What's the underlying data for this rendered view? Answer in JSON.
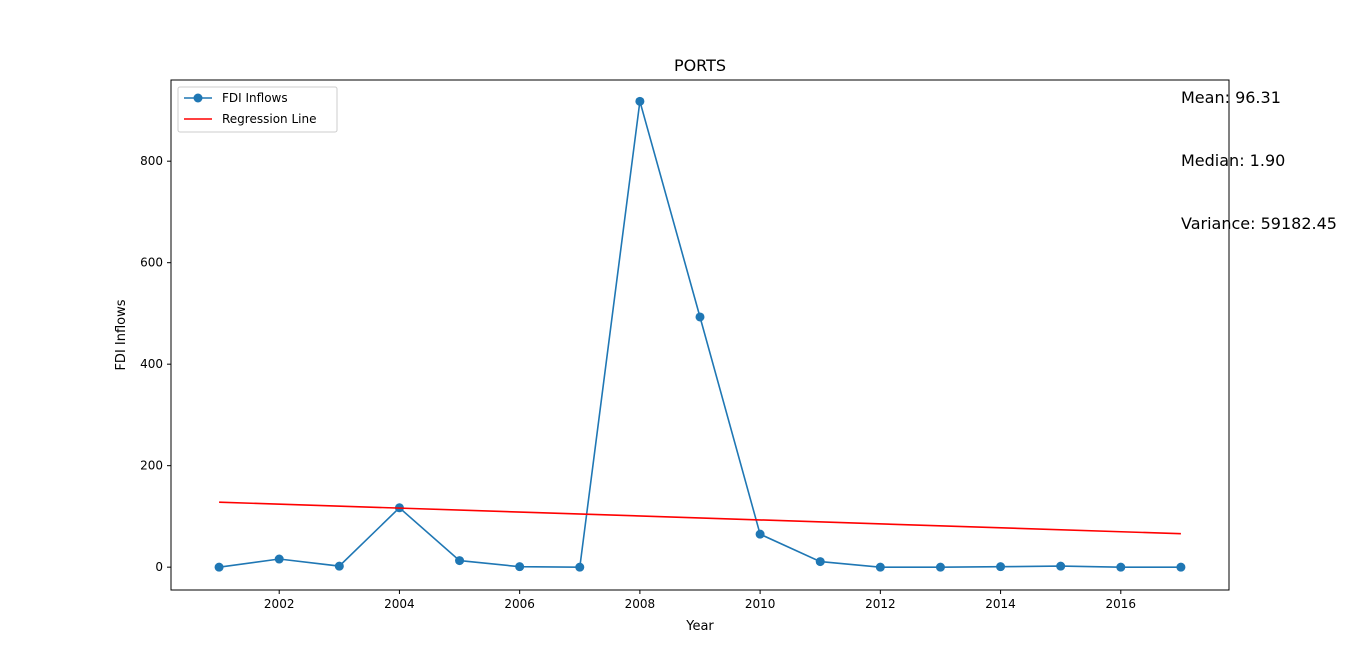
{
  "chart_data": {
    "type": "line",
    "title": "PORTS",
    "xlabel": "Year",
    "ylabel": "FDI Inflows",
    "xlim": [
      2000.2,
      2017.8
    ],
    "ylim": [
      -45,
      960
    ],
    "xticks": [
      2002,
      2004,
      2006,
      2008,
      2010,
      2012,
      2014,
      2016
    ],
    "yticks": [
      0,
      200,
      400,
      600,
      800
    ],
    "grid": false,
    "legend_position": "top-left",
    "series": [
      {
        "name": "FDI Inflows",
        "color": "#1f77b4",
        "marker": "circle",
        "x": [
          2001,
          2002,
          2003,
          2004,
          2005,
          2006,
          2007,
          2008,
          2009,
          2010,
          2011,
          2012,
          2013,
          2014,
          2015,
          2016,
          2017
        ],
        "y": [
          0,
          16,
          2,
          117,
          13,
          1,
          0,
          918,
          493,
          65,
          11,
          0,
          0,
          1,
          2,
          0,
          0
        ]
      },
      {
        "name": "Regression Line",
        "color": "#ff0000",
        "marker": "none",
        "x": [
          2001,
          2017
        ],
        "y": [
          128,
          66
        ]
      }
    ]
  },
  "stats": {
    "mean": "Mean: 96.31",
    "median": "Median: 1.90",
    "variance": "Variance: 59182.45"
  }
}
